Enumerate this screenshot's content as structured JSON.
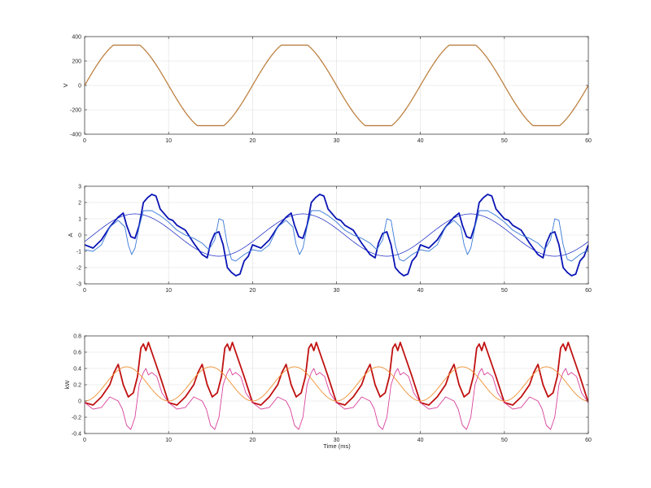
{
  "figure": {
    "background": "#ffffff",
    "axes_color": "#262626",
    "grid_color": "#e0e0e0"
  },
  "chart_data": [
    {
      "type": "line",
      "title": "",
      "xlabel": "",
      "ylabel": "V",
      "xlim": [
        0,
        60
      ],
      "ylim": [
        -400,
        400
      ],
      "xticks": [
        0,
        10,
        20,
        30,
        40,
        50,
        60
      ],
      "yticks": [
        -400,
        -200,
        0,
        200,
        400
      ],
      "grid": true,
      "legend": "none",
      "series": [
        {
          "kind": "clipped_sine",
          "period_ms": 20,
          "amplitude": 375,
          "clip": 330,
          "phase_ms": 0,
          "color": "#a0522d",
          "width": 1.2
        },
        {
          "kind": "clipped_sine",
          "period_ms": 20,
          "amplitude": 375,
          "clip": 330,
          "phase_ms": 0,
          "color": "#d2a040",
          "width": 0.6
        }
      ]
    },
    {
      "type": "line",
      "title": "",
      "xlabel": "",
      "ylabel": "A",
      "xlim": [
        0,
        60
      ],
      "ylim": [
        -3,
        3
      ],
      "xticks": [
        0,
        10,
        20,
        30,
        40,
        50,
        60
      ],
      "yticks": [
        -3,
        -2,
        -1,
        0,
        1,
        2,
        3
      ],
      "grid": true,
      "legend": "none",
      "series": [
        {
          "kind": "periodic_points",
          "period_ms": 20,
          "color": "#0a14b4",
          "width": 1.8,
          "points": [
            [
              0,
              -0.6
            ],
            [
              1,
              -0.8
            ],
            [
              2,
              -0.3
            ],
            [
              3,
              0.5
            ],
            [
              4,
              1.1
            ],
            [
              4.6,
              1.35
            ],
            [
              5,
              0.6
            ],
            [
              5.5,
              -0.1
            ],
            [
              6,
              -0.2
            ],
            [
              6.5,
              0.6
            ],
            [
              7,
              2.0
            ],
            [
              7.5,
              2.3
            ],
            [
              8,
              2.5
            ],
            [
              8.5,
              2.4
            ],
            [
              9,
              1.6
            ],
            [
              9.5,
              1.3
            ],
            [
              10,
              1.0
            ],
            [
              10.5,
              0.9
            ],
            [
              11,
              0.6
            ],
            [
              12,
              0.3
            ],
            [
              13,
              -0.5
            ],
            [
              14,
              -1.2
            ],
            [
              14.6,
              -1.4
            ],
            [
              15,
              -0.5
            ],
            [
              15.5,
              0.1
            ],
            [
              16,
              0.2
            ],
            [
              16.5,
              -0.6
            ],
            [
              17,
              -2.0
            ],
            [
              17.5,
              -2.3
            ],
            [
              18,
              -2.5
            ],
            [
              18.5,
              -2.4
            ],
            [
              19,
              -1.6
            ],
            [
              19.5,
              -1.3
            ],
            [
              20,
              -0.6
            ]
          ]
        },
        {
          "kind": "periodic_points",
          "period_ms": 20,
          "color": "#3a7ad8",
          "width": 0.9,
          "points": [
            [
              0,
              -0.9
            ],
            [
              1,
              -1.0
            ],
            [
              2,
              -0.6
            ],
            [
              3,
              0.5
            ],
            [
              4,
              0.9
            ],
            [
              4.8,
              0.5
            ],
            [
              5.2,
              -0.6
            ],
            [
              5.6,
              -1.2
            ],
            [
              6,
              -0.8
            ],
            [
              6.5,
              0.5
            ],
            [
              7,
              1.5
            ],
            [
              8,
              1.5
            ],
            [
              9,
              1.2
            ],
            [
              10,
              0.8
            ],
            [
              11,
              0.3
            ],
            [
              12,
              0.0
            ],
            [
              13,
              -0.2
            ],
            [
              14,
              -0.5
            ],
            [
              14.8,
              -0.9
            ],
            [
              15.5,
              -0.3
            ],
            [
              16,
              1.0
            ],
            [
              16.5,
              0.9
            ],
            [
              17,
              -0.6
            ],
            [
              17.5,
              -1.5
            ],
            [
              18,
              -1.6
            ],
            [
              19,
              -1.2
            ],
            [
              20,
              -0.9
            ]
          ]
        },
        {
          "kind": "sine",
          "period_ms": 20,
          "amplitude": 1.3,
          "phase_ms": 1,
          "color": "#1020c0",
          "width": 0.7
        }
      ]
    },
    {
      "type": "line",
      "title": "",
      "xlabel": "Time (ms)",
      "ylabel": "kW",
      "xlim": [
        0,
        60
      ],
      "ylim": [
        -0.4,
        0.8
      ],
      "xticks": [
        0,
        10,
        20,
        30,
        40,
        50,
        60
      ],
      "yticks": [
        -0.4,
        -0.2,
        0,
        0.2,
        0.4,
        0.6,
        0.8
      ],
      "grid": true,
      "legend": "none",
      "series": [
        {
          "kind": "periodic_points",
          "period_ms": 10,
          "color": "#c01010",
          "width": 1.8,
          "points": [
            [
              0,
              -0.02
            ],
            [
              1,
              -0.05
            ],
            [
              2,
              0.05
            ],
            [
              3,
              0.2
            ],
            [
              3.5,
              0.35
            ],
            [
              4,
              0.45
            ],
            [
              4.6,
              0.2
            ],
            [
              5.2,
              0.05
            ],
            [
              5.8,
              0.1
            ],
            [
              6.3,
              0.3
            ],
            [
              6.7,
              0.65
            ],
            [
              7,
              0.7
            ],
            [
              7.3,
              0.62
            ],
            [
              7.6,
              0.72
            ],
            [
              8,
              0.6
            ],
            [
              9,
              0.3
            ],
            [
              10,
              -0.02
            ]
          ]
        },
        {
          "kind": "periodic_points",
          "period_ms": 10,
          "color": "#d8409a",
          "width": 0.9,
          "points": [
            [
              0,
              -0.02
            ],
            [
              1,
              -0.1
            ],
            [
              2,
              -0.08
            ],
            [
              3,
              0.05
            ],
            [
              4,
              0.0
            ],
            [
              4.5,
              -0.1
            ],
            [
              5,
              -0.3
            ],
            [
              5.5,
              -0.35
            ],
            [
              6,
              -0.2
            ],
            [
              6.5,
              0.2
            ],
            [
              7,
              0.35
            ],
            [
              7.3,
              0.4
            ],
            [
              7.6,
              0.32
            ],
            [
              8,
              0.35
            ],
            [
              8.6,
              0.3
            ],
            [
              9.2,
              0.1
            ],
            [
              10,
              -0.02
            ]
          ]
        },
        {
          "kind": "sin_squared",
          "period_ms": 20,
          "amplitude": 0.42,
          "phase_ms": 0,
          "color": "#f09030",
          "width": 0.9
        }
      ]
    }
  ]
}
